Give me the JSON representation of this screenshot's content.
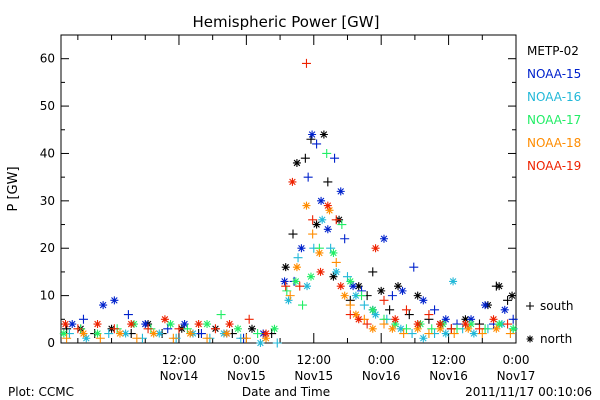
{
  "chart_data": {
    "type": "scatter",
    "title": "Hemispheric Power [GW]",
    "xlabel": "Date and Time",
    "ylabel": "P [GW]",
    "ylim": [
      0,
      65
    ],
    "yticks": [
      0,
      10,
      20,
      30,
      40,
      50,
      60
    ],
    "x_unit": "hours since 2011-11-13 00:00 UT",
    "xlim": [
      15,
      96
    ],
    "x_major_ticks": [
      {
        "x": 36,
        "line1": "12:00",
        "line2": "Nov14"
      },
      {
        "x": 48,
        "line1": "0:00",
        "line2": "Nov15"
      },
      {
        "x": 60,
        "line1": "12:00",
        "line2": "Nov15"
      },
      {
        "x": 72,
        "line1": "0:00",
        "line2": "Nov16"
      },
      {
        "x": 84,
        "line1": "12:00",
        "line2": "Nov16"
      },
      {
        "x": 96,
        "line1": "0:00",
        "line2": "Nov17"
      }
    ],
    "x_minor_ticks": [
      18,
      24,
      30,
      42,
      54,
      66,
      78,
      90
    ],
    "grid": false,
    "legend": {
      "placement": "right",
      "marker_note": {
        "plus": "south",
        "star": "north"
      }
    },
    "series": [
      {
        "name": "METP-02",
        "color": "#000000",
        "points": [
          [
            16.0,
            3,
            "+"
          ],
          [
            18.5,
            3,
            "*"
          ],
          [
            21.0,
            2,
            "+"
          ],
          [
            24.0,
            3,
            "*"
          ],
          [
            27.5,
            2,
            "+"
          ],
          [
            30.5,
            4,
            "*"
          ],
          [
            33.0,
            2,
            "+"
          ],
          [
            36.5,
            3,
            "*"
          ],
          [
            39.5,
            2,
            "+"
          ],
          [
            42.5,
            3,
            "*"
          ],
          [
            45.5,
            2,
            "+"
          ],
          [
            49.0,
            3,
            "*"
          ],
          [
            52.5,
            2,
            "+"
          ],
          [
            55.0,
            16,
            "*"
          ],
          [
            56.3,
            23,
            "+"
          ],
          [
            57.0,
            38,
            "*"
          ],
          [
            58.5,
            39,
            "+"
          ],
          [
            59.5,
            43,
            "+"
          ],
          [
            60.5,
            25,
            "*"
          ],
          [
            61.8,
            44,
            "*"
          ],
          [
            62.5,
            34,
            "+"
          ],
          [
            63.5,
            14,
            "*"
          ],
          [
            64.5,
            26,
            "*"
          ],
          [
            66.5,
            9,
            "+"
          ],
          [
            68.0,
            12,
            "*"
          ],
          [
            69.5,
            10,
            "+"
          ],
          [
            70.5,
            15,
            "+"
          ],
          [
            72.0,
            11,
            "*"
          ],
          [
            73.5,
            7,
            "+"
          ],
          [
            75.0,
            12,
            "*"
          ],
          [
            77.0,
            6,
            "+"
          ],
          [
            78.5,
            10,
            "*"
          ],
          [
            80.5,
            5,
            "+"
          ],
          [
            82.5,
            4,
            "*"
          ],
          [
            84.5,
            3,
            "+"
          ],
          [
            87.0,
            5,
            "*"
          ],
          [
            89.5,
            4,
            "+"
          ],
          [
            91.0,
            8,
            "*"
          ],
          [
            92.5,
            12,
            "+"
          ],
          [
            93.0,
            12,
            "*"
          ],
          [
            94.5,
            9,
            "+"
          ],
          [
            95.3,
            10,
            "*"
          ]
        ]
      },
      {
        "name": "NOAA-15",
        "color": "#0022cc",
        "points": [
          [
            17.0,
            4,
            "*"
          ],
          [
            19.0,
            5,
            "+"
          ],
          [
            22.5,
            8,
            "*"
          ],
          [
            24.5,
            9,
            "*"
          ],
          [
            27.0,
            6,
            "+"
          ],
          [
            30.0,
            4,
            "*"
          ],
          [
            34.0,
            3,
            "+"
          ],
          [
            37.0,
            4,
            "*"
          ],
          [
            40.0,
            2,
            "+"
          ],
          [
            44.5,
            2,
            "*"
          ],
          [
            47.5,
            1,
            "+"
          ],
          [
            51.0,
            2,
            "*"
          ],
          [
            54.8,
            13,
            "*"
          ],
          [
            56.5,
            13,
            "+"
          ],
          [
            57.8,
            20,
            "*"
          ],
          [
            59.0,
            35,
            "+"
          ],
          [
            59.7,
            44,
            "*"
          ],
          [
            60.5,
            42,
            "+"
          ],
          [
            61.3,
            30,
            "*"
          ],
          [
            62.5,
            24,
            "*"
          ],
          [
            63.7,
            39,
            "+"
          ],
          [
            64.8,
            32,
            "*"
          ],
          [
            65.5,
            22,
            "+"
          ],
          [
            67.0,
            12,
            "*"
          ],
          [
            68.5,
            11,
            "+"
          ],
          [
            70.5,
            7,
            "*"
          ],
          [
            72.5,
            22,
            "*"
          ],
          [
            74.0,
            10,
            "+"
          ],
          [
            75.8,
            11,
            "*"
          ],
          [
            77.8,
            16,
            "+"
          ],
          [
            79.5,
            9,
            "*"
          ],
          [
            81.5,
            7,
            "+"
          ],
          [
            83.5,
            5,
            "*"
          ],
          [
            85.5,
            4,
            "+"
          ],
          [
            88.0,
            5,
            "*"
          ],
          [
            90.5,
            8,
            "*"
          ],
          [
            92.0,
            4,
            "+"
          ],
          [
            94.0,
            7,
            "*"
          ],
          [
            95.5,
            5,
            "+"
          ]
        ]
      },
      {
        "name": "NOAA-16",
        "color": "#22b8d8",
        "points": [
          [
            16.5,
            2,
            "+"
          ],
          [
            19.5,
            1,
            "*"
          ],
          [
            23.5,
            2,
            "+"
          ],
          [
            26.5,
            2,
            "*"
          ],
          [
            29.5,
            1,
            "+"
          ],
          [
            32.5,
            2,
            "*"
          ],
          [
            35.5,
            1,
            "+"
          ],
          [
            38.5,
            2,
            "*"
          ],
          [
            41.5,
            1,
            "+"
          ],
          [
            44.0,
            2,
            "*"
          ],
          [
            47.0,
            1,
            "+"
          ],
          [
            50.5,
            0,
            "*"
          ],
          [
            53.5,
            0,
            "+"
          ],
          [
            55.5,
            9,
            "*"
          ],
          [
            57.2,
            18,
            "+"
          ],
          [
            58.8,
            12,
            "*"
          ],
          [
            60.0,
            20,
            "+"
          ],
          [
            61.5,
            26,
            "*"
          ],
          [
            63.0,
            20,
            "+"
          ],
          [
            64.0,
            15,
            "*"
          ],
          [
            66.0,
            14,
            "+"
          ],
          [
            67.5,
            10,
            "*"
          ],
          [
            69.0,
            8,
            "+"
          ],
          [
            71.0,
            6,
            "*"
          ],
          [
            73.0,
            5,
            "+"
          ],
          [
            75.5,
            3,
            "*"
          ],
          [
            77.5,
            2,
            "+"
          ],
          [
            79.5,
            1,
            "*"
          ],
          [
            81.5,
            2,
            "+"
          ],
          [
            83.5,
            2,
            "*"
          ],
          [
            84.8,
            13,
            "*"
          ],
          [
            86.5,
            3,
            "+"
          ],
          [
            88.5,
            2,
            "*"
          ],
          [
            91.0,
            3,
            "+"
          ],
          [
            93.5,
            4,
            "*"
          ],
          [
            95.5,
            3,
            "+"
          ]
        ]
      },
      {
        "name": "NOAA-17",
        "color": "#22ee66",
        "points": [
          [
            15.5,
            2,
            "*"
          ],
          [
            18.5,
            3,
            "+"
          ],
          [
            21.5,
            2,
            "*"
          ],
          [
            25.0,
            3,
            "+"
          ],
          [
            28.0,
            4,
            "*"
          ],
          [
            31.0,
            3,
            "+"
          ],
          [
            34.5,
            4,
            "*"
          ],
          [
            37.5,
            3,
            "+"
          ],
          [
            41.0,
            4,
            "*"
          ],
          [
            43.5,
            6,
            "+"
          ],
          [
            46.5,
            3,
            "*"
          ],
          [
            50.0,
            2,
            "+"
          ],
          [
            53.0,
            3,
            "*"
          ],
          [
            55.2,
            11,
            "+"
          ],
          [
            56.8,
            13,
            "*"
          ],
          [
            58.0,
            8,
            "+"
          ],
          [
            59.5,
            14,
            "*"
          ],
          [
            61.0,
            20,
            "+"
          ],
          [
            62.3,
            40,
            "+"
          ],
          [
            63.5,
            19,
            "*"
          ],
          [
            65.0,
            25,
            "+"
          ],
          [
            66.5,
            13,
            "*"
          ],
          [
            68.5,
            10,
            "+"
          ],
          [
            70.5,
            7,
            "*"
          ],
          [
            72.5,
            5,
            "+"
          ],
          [
            74.5,
            4,
            "*"
          ],
          [
            76.5,
            3,
            "+"
          ],
          [
            79.0,
            4,
            "*"
          ],
          [
            81.0,
            3,
            "+"
          ],
          [
            83.0,
            4,
            "*"
          ],
          [
            85.5,
            3,
            "+"
          ],
          [
            88.0,
            4,
            "*"
          ],
          [
            90.5,
            3,
            "+"
          ],
          [
            93.0,
            4,
            "*"
          ],
          [
            95.5,
            3,
            "*"
          ]
        ]
      },
      {
        "name": "NOAA-18",
        "color": "#ff8c00",
        "points": [
          [
            16.0,
            1,
            "+"
          ],
          [
            19.0,
            2,
            "*"
          ],
          [
            22.0,
            1,
            "+"
          ],
          [
            25.5,
            2,
            "*"
          ],
          [
            28.5,
            1,
            "+"
          ],
          [
            31.5,
            2,
            "*"
          ],
          [
            35.0,
            1,
            "+"
          ],
          [
            38.0,
            2,
            "*"
          ],
          [
            41.0,
            1,
            "+"
          ],
          [
            44.5,
            2,
            "*"
          ],
          [
            48.0,
            1,
            "+"
          ],
          [
            51.5,
            1,
            "*"
          ],
          [
            55.8,
            10,
            "+"
          ],
          [
            57.0,
            16,
            "*"
          ],
          [
            58.7,
            29,
            "*"
          ],
          [
            59.8,
            23,
            "+"
          ],
          [
            61.0,
            19,
            "*"
          ],
          [
            62.8,
            28,
            "*"
          ],
          [
            64.0,
            17,
            "+"
          ],
          [
            65.5,
            10,
            "*"
          ],
          [
            66.5,
            8,
            "+"
          ],
          [
            67.5,
            6,
            "*"
          ],
          [
            69.0,
            5,
            "+"
          ],
          [
            70.5,
            3,
            "*"
          ],
          [
            72.5,
            4,
            "+"
          ],
          [
            74.0,
            3,
            "*"
          ],
          [
            76.0,
            2,
            "+"
          ],
          [
            78.5,
            3,
            "*"
          ],
          [
            80.5,
            2,
            "+"
          ],
          [
            82.5,
            3,
            "*"
          ],
          [
            85.0,
            2,
            "+"
          ],
          [
            87.5,
            3,
            "*"
          ],
          [
            90.0,
            2,
            "+"
          ],
          [
            92.5,
            3,
            "*"
          ],
          [
            95.0,
            2,
            "+"
          ]
        ]
      },
      {
        "name": "NOAA-19",
        "color": "#ee2200",
        "points": [
          [
            15.8,
            4,
            "*"
          ],
          [
            18.0,
            3,
            "+"
          ],
          [
            21.5,
            4,
            "*"
          ],
          [
            24.5,
            3,
            "+"
          ],
          [
            27.5,
            4,
            "*"
          ],
          [
            30.5,
            3,
            "+"
          ],
          [
            33.5,
            5,
            "*"
          ],
          [
            36.0,
            3,
            "+"
          ],
          [
            39.5,
            4,
            "*"
          ],
          [
            42.5,
            3,
            "+"
          ],
          [
            45.0,
            4,
            "*"
          ],
          [
            48.5,
            5,
            "+"
          ],
          [
            51.5,
            2,
            "*"
          ],
          [
            55.0,
            12,
            "+"
          ],
          [
            56.2,
            34,
            "*"
          ],
          [
            57.5,
            12,
            "+"
          ],
          [
            58.7,
            59,
            "+"
          ],
          [
            59.8,
            26,
            "+"
          ],
          [
            61.2,
            15,
            "*"
          ],
          [
            62.5,
            29,
            "*"
          ],
          [
            64.0,
            26,
            "+"
          ],
          [
            64.8,
            12,
            "*"
          ],
          [
            66.5,
            6,
            "+"
          ],
          [
            68.0,
            5,
            "*"
          ],
          [
            69.5,
            4,
            "+"
          ],
          [
            71.0,
            20,
            "*"
          ],
          [
            72.5,
            9,
            "+"
          ],
          [
            74.5,
            5,
            "*"
          ],
          [
            76.5,
            7,
            "+"
          ],
          [
            78.5,
            4,
            "*"
          ],
          [
            80.5,
            6,
            "+"
          ],
          [
            82.5,
            4,
            "*"
          ],
          [
            84.5,
            3,
            "+"
          ],
          [
            87.0,
            4,
            "*"
          ],
          [
            89.5,
            3,
            "+"
          ],
          [
            92.0,
            5,
            "*"
          ],
          [
            94.5,
            4,
            "+"
          ]
        ]
      }
    ]
  },
  "footer": {
    "left": "Plot: CCMC",
    "right": "2011/11/17 00:10:06"
  }
}
